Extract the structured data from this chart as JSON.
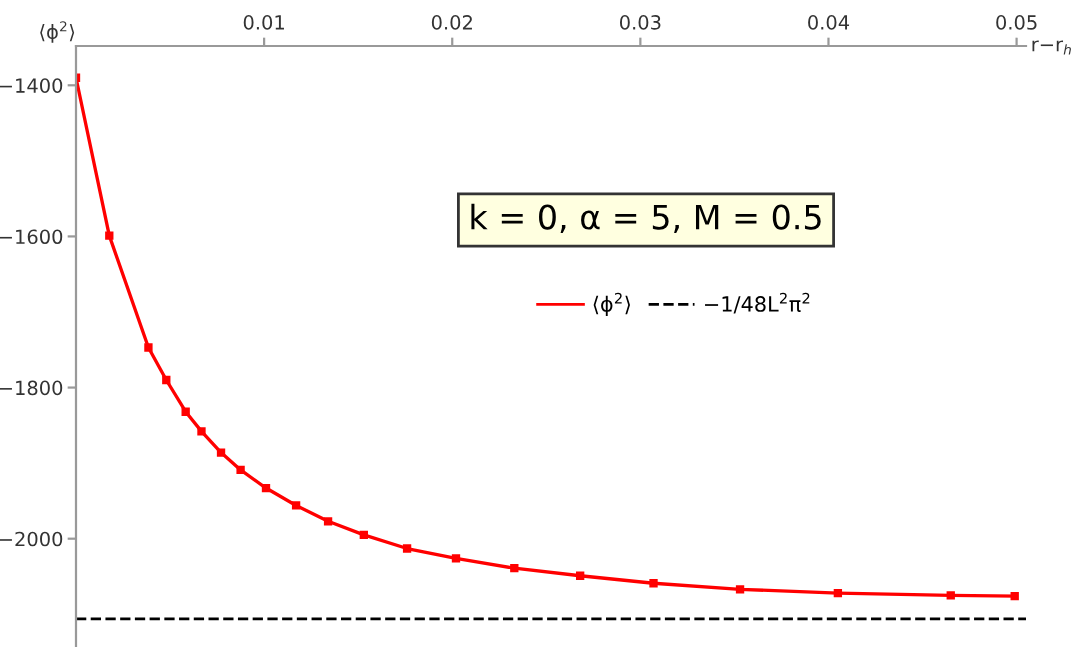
{
  "chart_data": {
    "type": "line",
    "xlabel": "r−r$_{h}$",
    "ylabel": "⟨ϕ$^{2}$⟩",
    "annotations": [
      "k = 0, α = 5, M = 0.5"
    ],
    "x": [
      0,
      0.00177,
      0.00385,
      0.0048,
      0.00583,
      0.00667,
      0.00771,
      0.00875,
      0.0101,
      0.0117,
      0.0134,
      0.0153,
      0.0176,
      0.0202,
      0.0233,
      0.0268,
      0.0307,
      0.0353,
      0.0405,
      0.0465,
      0.0499
    ],
    "series": [
      {
        "name": "⟨ϕ$^{2}$⟩",
        "color": "#ff0000",
        "values": [
          -1390,
          -1599,
          -1747,
          -1790,
          -1832,
          -1858,
          -1886,
          -1909,
          -1933,
          -1956,
          -1977,
          -1995,
          -2013,
          -2026,
          -2039,
          -2049,
          -2059,
          -2067,
          -2072,
          -2075,
          -2076
        ]
      }
    ],
    "ref_lines": [
      {
        "axis": "y",
        "value": -2106,
        "label": "−1/48L$^{2}$π$^{2}$",
        "color": "#000000",
        "line_style": "dashed"
      }
    ],
    "xlim": [
      0,
      0.0505
    ],
    "ylim": [
      -2142,
      -1348
    ],
    "xticks": [
      0.01,
      0.02,
      0.03,
      0.04,
      0.05
    ],
    "yticks": [
      -1400,
      -1600,
      -1800,
      -2000
    ],
    "legend": "center",
    "marker": "square",
    "line_style": "solid",
    "grid": false
  }
}
